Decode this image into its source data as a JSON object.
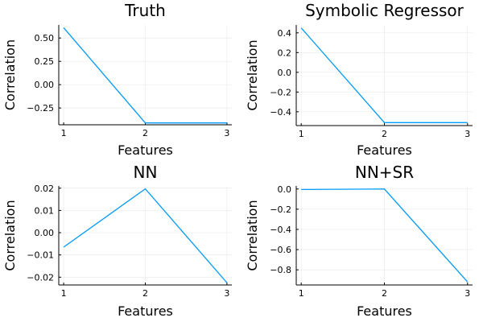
{
  "chart_data": [
    {
      "type": "line",
      "title": "Truth",
      "xlabel": "Features",
      "ylabel": "Correlation",
      "x": [
        1,
        2,
        3
      ],
      "xticks": [
        1,
        2,
        3
      ],
      "xlim": [
        0.94,
        3.06
      ],
      "yticks": [
        0.5,
        0.25,
        0.0,
        -0.25
      ],
      "ytick_labels": [
        "0.50",
        "0.25",
        "0.00",
        "−0.25"
      ],
      "ylim": [
        -0.43,
        0.64
      ],
      "grid": true,
      "legend": "none",
      "series": [
        {
          "values": [
            0.61,
            -0.41,
            -0.41
          ],
          "color": "#009AFA"
        }
      ]
    },
    {
      "type": "line",
      "title": "Symbolic Regressor",
      "xlabel": "Features",
      "ylabel": "Correlation",
      "x": [
        1,
        2,
        3
      ],
      "xticks": [
        1,
        2,
        3
      ],
      "xlim": [
        0.94,
        3.06
      ],
      "yticks": [
        0.4,
        0.2,
        0.0,
        -0.2,
        -0.4
      ],
      "ytick_labels": [
        "0.4",
        "0.2",
        "0.0",
        "−0.2",
        "−0.4"
      ],
      "ylim": [
        -0.54,
        0.48
      ],
      "grid": true,
      "legend": "none",
      "series": [
        {
          "values": [
            0.45,
            -0.51,
            -0.51
          ],
          "color": "#009AFA"
        }
      ]
    },
    {
      "type": "line",
      "title": "NN",
      "xlabel": "Features",
      "ylabel": "Correlation",
      "x": [
        1,
        2,
        3
      ],
      "xticks": [
        1,
        2,
        3
      ],
      "xlim": [
        0.94,
        3.06
      ],
      "yticks": [
        0.02,
        0.01,
        0.0,
        -0.01,
        -0.02
      ],
      "ytick_labels": [
        "0.02",
        "0.01",
        "0.00",
        "−0.01",
        "−0.02"
      ],
      "ylim": [
        -0.0235,
        0.021
      ],
      "grid": true,
      "legend": "none",
      "series": [
        {
          "values": [
            -0.0065,
            0.0197,
            -0.0225
          ],
          "color": "#009AFA"
        }
      ]
    },
    {
      "type": "line",
      "title": "NN+SR",
      "xlabel": "Features",
      "ylabel": "Correlation",
      "x": [
        1,
        2,
        3
      ],
      "xticks": [
        1,
        2,
        3
      ],
      "xlim": [
        0.94,
        3.06
      ],
      "yticks": [
        0.0,
        -0.2,
        -0.4,
        -0.6,
        -0.8
      ],
      "ytick_labels": [
        "0.0",
        "−0.2",
        "−0.4",
        "−0.6",
        "−0.8"
      ],
      "ylim": [
        -0.95,
        0.03
      ],
      "grid": true,
      "legend": "none",
      "series": [
        {
          "values": [
            -0.005,
            0.0,
            -0.92
          ],
          "color": "#009AFA"
        }
      ]
    }
  ]
}
